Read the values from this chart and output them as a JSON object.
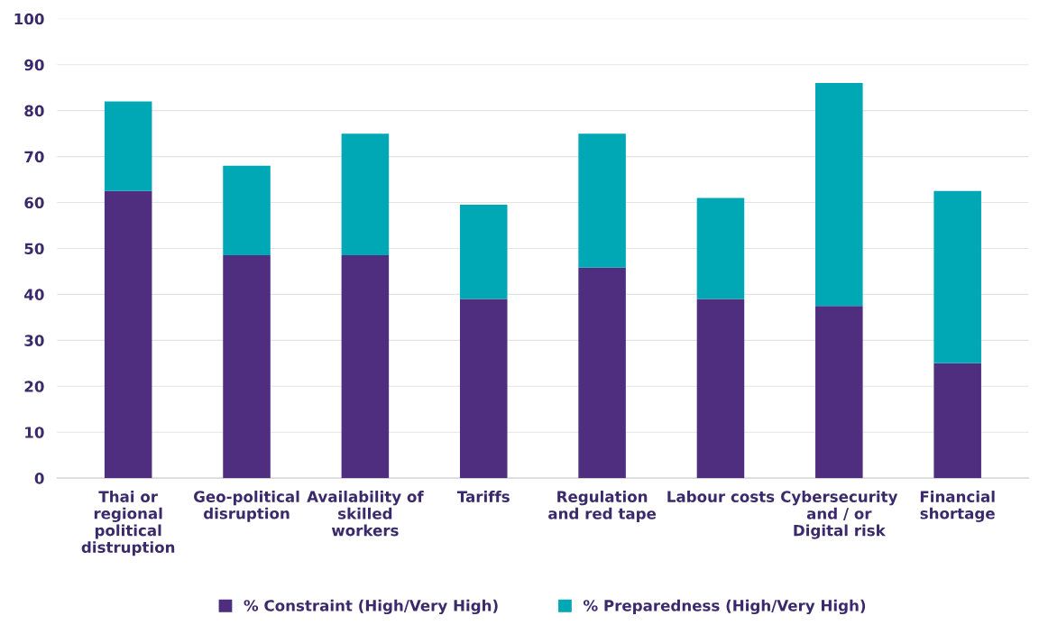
{
  "chart_data": {
    "type": "bar",
    "stacked": true,
    "categories": [
      "Thai or\nregional\npolitical\ndistruption",
      "Geo-political\ndisruption",
      "Availability of\nskilled\nworkers",
      "Tariffs",
      "Regulation\nand red tape",
      "Labour costs",
      "Cybersecurity\nand / or\nDigital risk",
      "Financial\nshortage"
    ],
    "series": [
      {
        "name": "% Constraint (High/Very High)",
        "color": "#4f2d7f",
        "values": [
          62.5,
          48.5,
          48.5,
          39,
          45.8,
          39,
          37.5,
          25
        ]
      },
      {
        "name": "% Preparedness (High/Very High)",
        "color": "#00a7b5",
        "values": [
          19.5,
          19.5,
          26.5,
          20.5,
          29.2,
          22,
          48.5,
          37.5
        ]
      }
    ],
    "ylim": [
      0,
      100
    ],
    "yticks": [
      0,
      10,
      20,
      30,
      40,
      50,
      60,
      70,
      80,
      90,
      100
    ],
    "grid": "y",
    "legend": "bottom"
  }
}
